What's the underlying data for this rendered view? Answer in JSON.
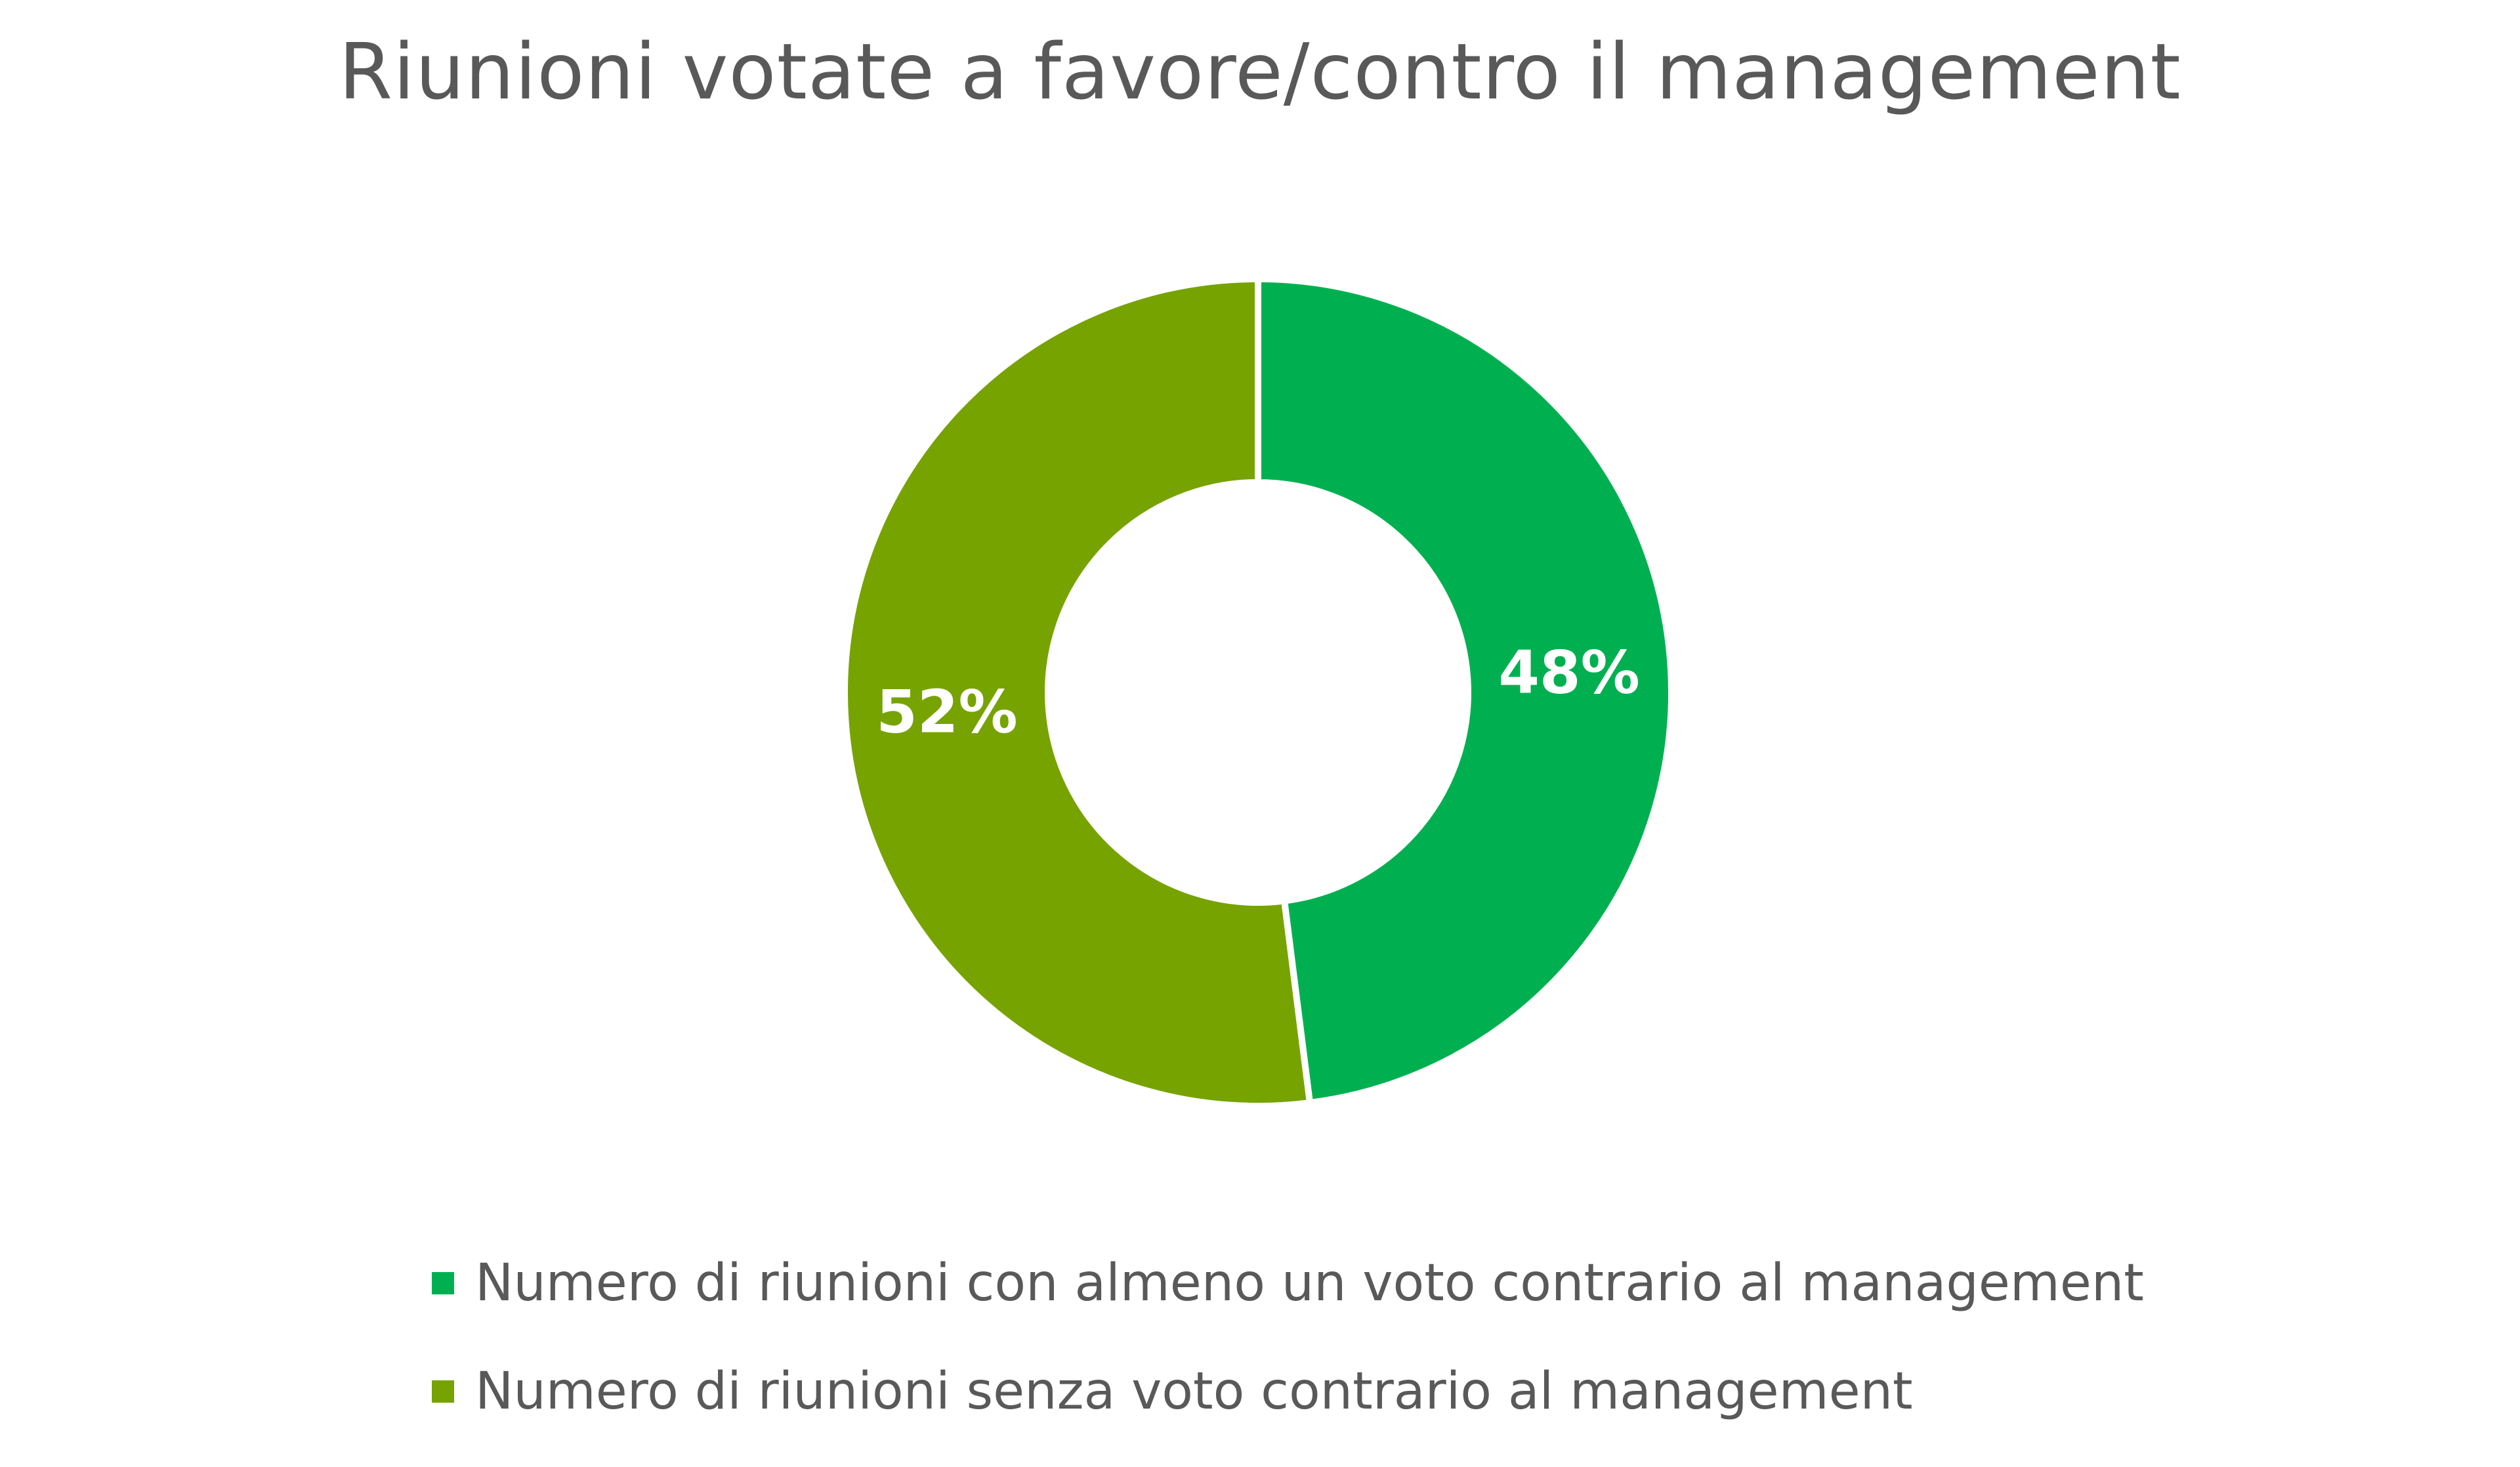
{
  "chart_data": {
    "type": "pie",
    "variant": "donut",
    "title": "Riunioni votate a favore/contro il management",
    "slices": [
      {
        "name": "Numero di riunioni con almeno un voto contrario al management",
        "value": 48,
        "label": "48%",
        "color": "#00b050"
      },
      {
        "name": "Numero di riunioni senza voto contrario al management",
        "value": 52,
        "label": "52%",
        "color": "#76a300"
      }
    ],
    "legend_position": "bottom"
  }
}
